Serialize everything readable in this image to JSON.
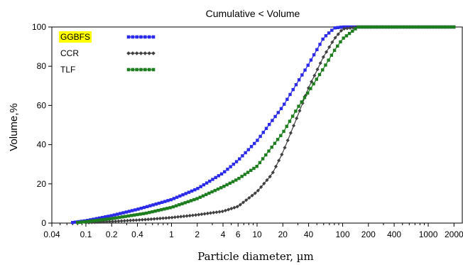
{
  "chart_data": {
    "type": "line",
    "title": "Cumulative < Volume",
    "xlabel": "Particle diameter, µm",
    "ylabel": "Volume,%",
    "xscale": "log",
    "xlim": [
      0.04,
      2500
    ],
    "ylim": [
      0,
      100
    ],
    "xticks": [
      {
        "value": 0.04,
        "label": "0.04"
      },
      {
        "value": 0.1,
        "label": "0.1"
      },
      {
        "value": 0.2,
        "label": "0.2"
      },
      {
        "value": 0.4,
        "label": "0.4"
      },
      {
        "value": 1,
        "label": "1"
      },
      {
        "value": 2,
        "label": "2"
      },
      {
        "value": 4,
        "label": "4"
      },
      {
        "value": 6,
        "label": "6"
      },
      {
        "value": 10,
        "label": "10"
      },
      {
        "value": 20,
        "label": "20"
      },
      {
        "value": 40,
        "label": "40"
      },
      {
        "value": 100,
        "label": "100"
      },
      {
        "value": 200,
        "label": "200"
      },
      {
        "value": 400,
        "label": "400"
      },
      {
        "value": 1000,
        "label": "1000"
      },
      {
        "value": 2000,
        "label": "2000"
      }
    ],
    "yticks": [
      {
        "value": 0,
        "label": "0"
      },
      {
        "value": 20,
        "label": "20"
      },
      {
        "value": 40,
        "label": "40"
      },
      {
        "value": 60,
        "label": "60"
      },
      {
        "value": 80,
        "label": "80"
      },
      {
        "value": 100,
        "label": "100"
      }
    ],
    "grid": false,
    "legend": "top-left",
    "series": [
      {
        "name": "GGBFS",
        "color": "#2a2ae8",
        "marker": "square",
        "highlight": "#ffff00",
        "points": [
          [
            0.07,
            0.3
          ],
          [
            0.1,
            1.2
          ],
          [
            0.2,
            3.8
          ],
          [
            0.4,
            7.0
          ],
          [
            0.7,
            10.0
          ],
          [
            1,
            12.0
          ],
          [
            2,
            17.5
          ],
          [
            4,
            25.5
          ],
          [
            6,
            32.0
          ],
          [
            10,
            42.0
          ],
          [
            20,
            59.5
          ],
          [
            40,
            81.0
          ],
          [
            60,
            94.5
          ],
          [
            80,
            99.5
          ],
          [
            100,
            100
          ],
          [
            200,
            100
          ],
          [
            500,
            100
          ],
          [
            1000,
            100
          ],
          [
            2000,
            100
          ]
        ]
      },
      {
        "name": "CCR",
        "color": "#404040",
        "marker": "diamond",
        "points": [
          [
            0.1,
            0.2
          ],
          [
            0.2,
            0.8
          ],
          [
            0.5,
            1.8
          ],
          [
            1,
            2.8
          ],
          [
            2,
            4.2
          ],
          [
            4,
            6.0
          ],
          [
            6,
            8.5
          ],
          [
            10,
            16.0
          ],
          [
            15,
            25.0
          ],
          [
            20,
            36.0
          ],
          [
            30,
            55.0
          ],
          [
            40,
            69.0
          ],
          [
            60,
            85.0
          ],
          [
            80,
            94.0
          ],
          [
            100,
            99.0
          ],
          [
            150,
            100
          ],
          [
            300,
            100
          ],
          [
            1000,
            100
          ],
          [
            2000,
            100
          ]
        ]
      },
      {
        "name": "TLF",
        "color": "#1e7d1e",
        "marker": "square",
        "points": [
          [
            0.08,
            0.3
          ],
          [
            0.1,
            0.7
          ],
          [
            0.2,
            2.3
          ],
          [
            0.5,
            5.0
          ],
          [
            1,
            8.0
          ],
          [
            2,
            12.5
          ],
          [
            4,
            18.5
          ],
          [
            6,
            22.5
          ],
          [
            10,
            29.0
          ],
          [
            20,
            46.0
          ],
          [
            30,
            59.0
          ],
          [
            40,
            67.0
          ],
          [
            60,
            79.0
          ],
          [
            80,
            88.0
          ],
          [
            100,
            94.0
          ],
          [
            150,
            100
          ],
          [
            300,
            100
          ],
          [
            1000,
            100
          ],
          [
            2000,
            100
          ]
        ]
      }
    ]
  }
}
